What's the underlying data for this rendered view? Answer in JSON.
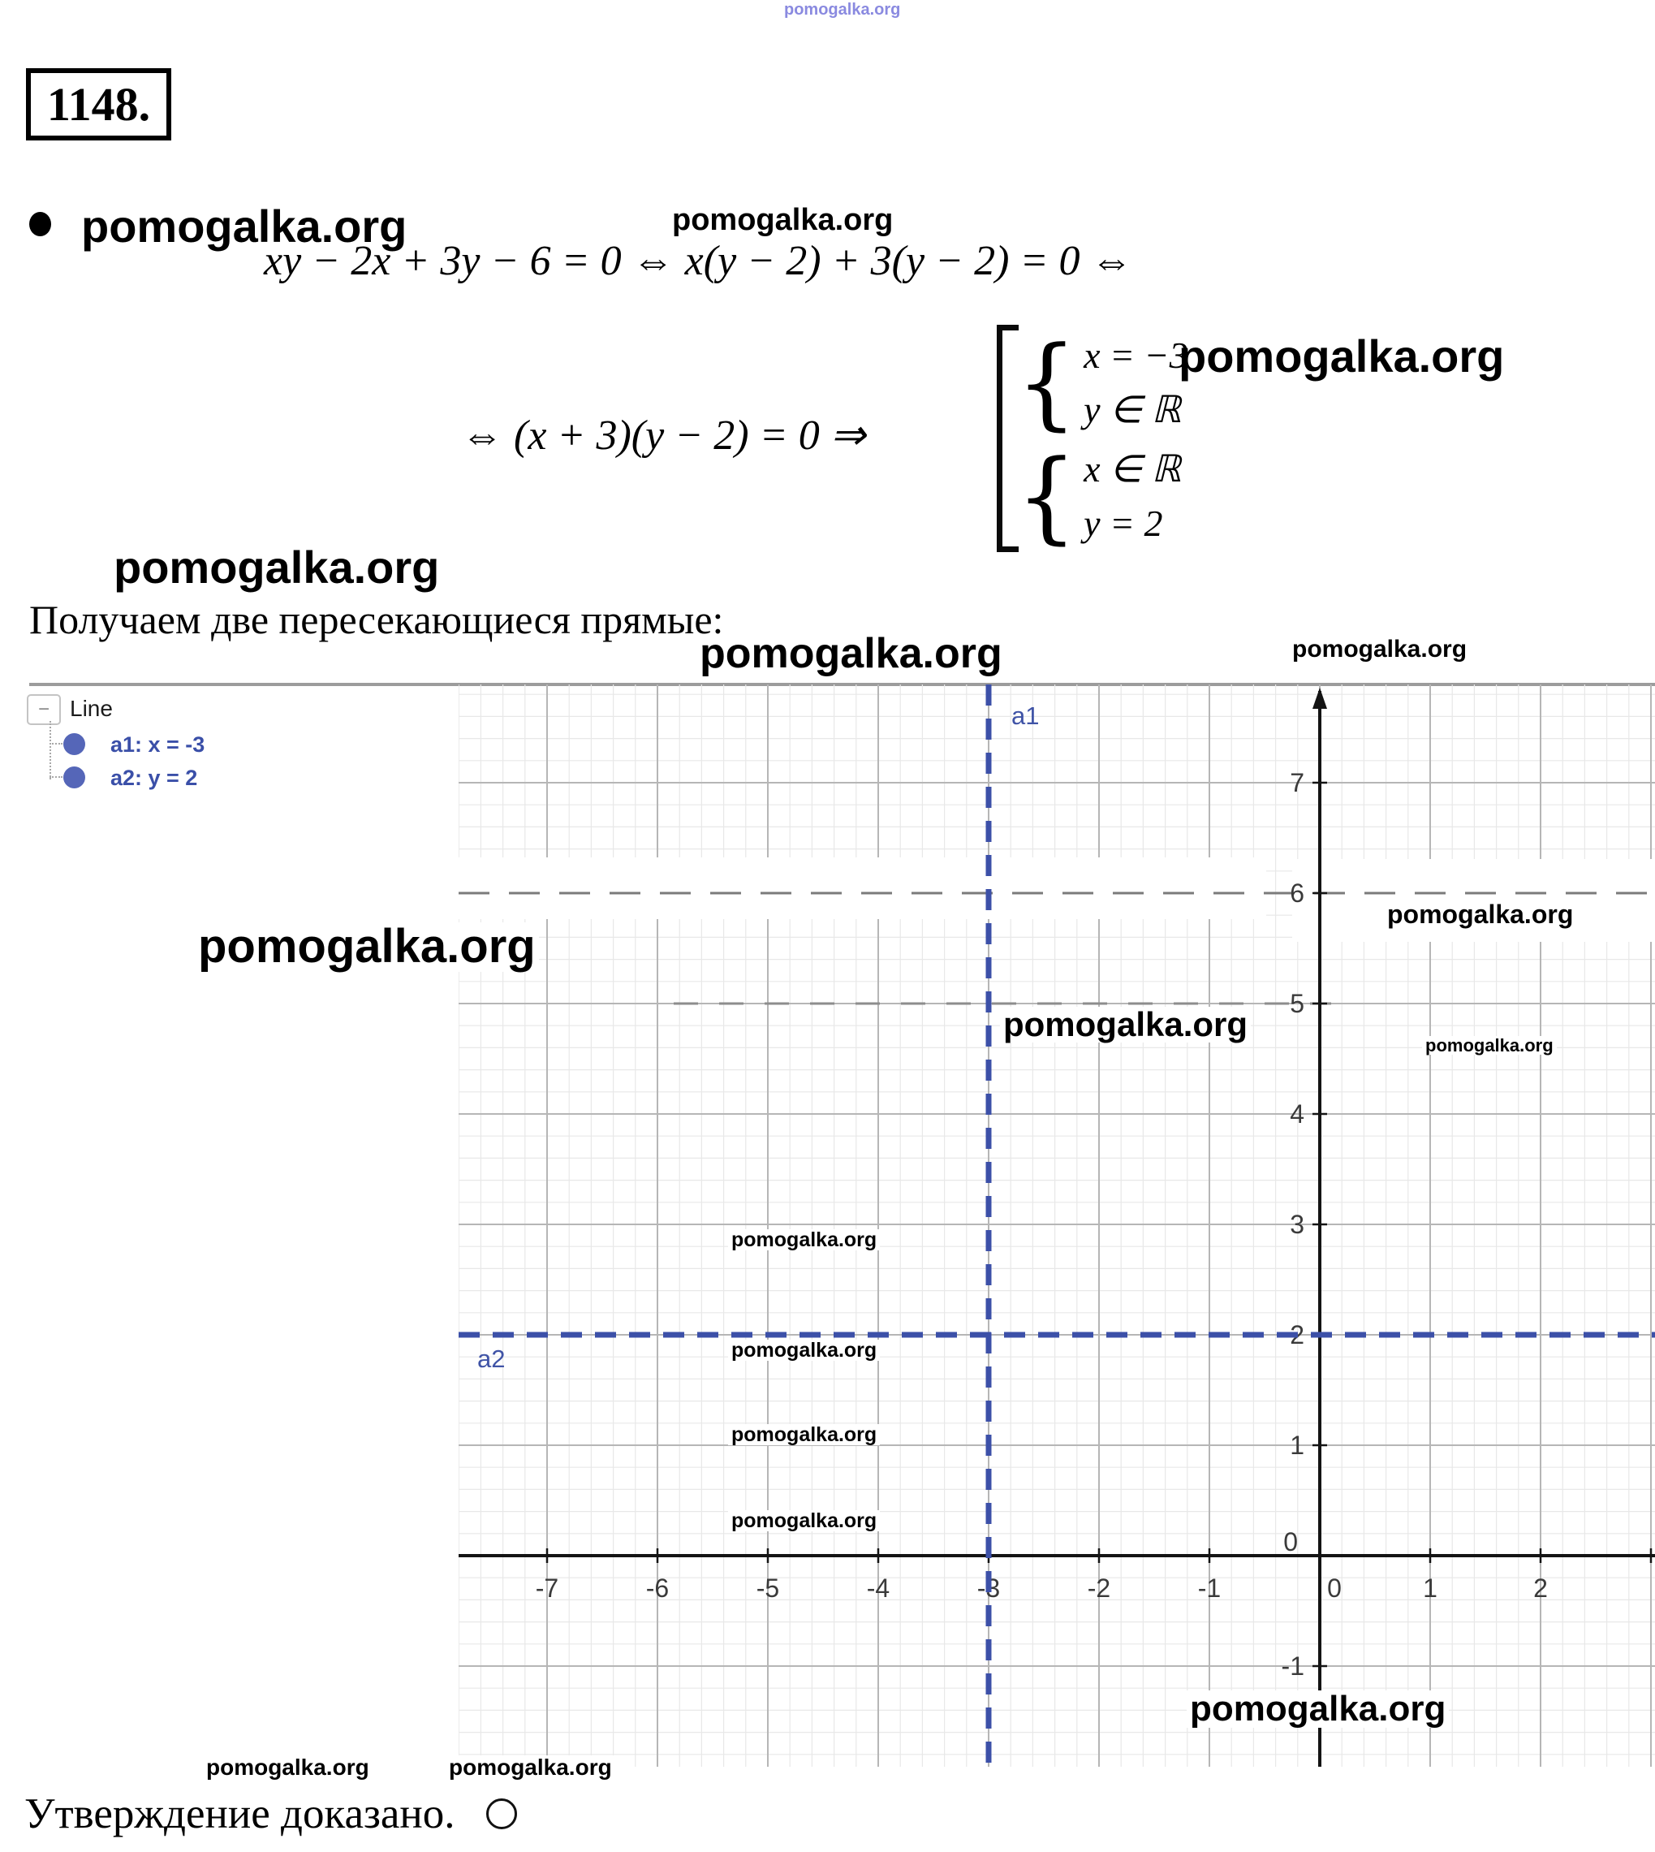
{
  "watermark_text": "pomogalka.org",
  "problem_number": "1148.",
  "math": {
    "line1": "xy − 2x + 3y − 6 = 0  ⇔  x(y − 2) + 3(y − 2) = 0  ⇔",
    "line2": "⇔ (x + 3)(y − 2) = 0 ⇒",
    "case1_row1": "x = −3",
    "case1_row2": "y ∈ ℝ",
    "case2_row1": "x ∈ ℝ",
    "case2_row2": "y = 2"
  },
  "intro_text": "Получаем две пересекающиеся прямые:",
  "conclusion_text": "Утверждение доказано.",
  "legend": {
    "title": "Line",
    "collapse": "−",
    "items": [
      {
        "label": "a1: x = -3"
      },
      {
        "label": "a2: y = 2"
      }
    ]
  },
  "graph_labels": {
    "a1": "a1",
    "a2": "a2"
  },
  "chart_data": {
    "type": "line",
    "title": "",
    "xlabel": "",
    "ylabel": "",
    "lines": [
      {
        "name": "a1",
        "equation": "x = -3",
        "orientation": "vertical",
        "value": -3,
        "style": "dashed"
      },
      {
        "name": "a2",
        "equation": "y = 2",
        "orientation": "horizontal",
        "value": 2,
        "style": "dashed"
      }
    ],
    "x_ticks": [
      -7,
      -6,
      -5,
      -4,
      -3,
      -2,
      -1,
      0,
      1,
      2
    ],
    "y_ticks": [
      7,
      6,
      5,
      4,
      3,
      2,
      1,
      0,
      -1
    ],
    "x_range": [
      -7.8,
      3.0
    ],
    "y_range": [
      -1.9,
      7.9
    ],
    "grid": "major+minor",
    "minor_per_unit": 5,
    "legend_position": "top-left-outside",
    "colors": {
      "line": "#3c50a8",
      "major_grid": "#b6b6b6",
      "minor_grid": "#e8e8e8",
      "axis": "#141414",
      "tick_label": "#3a3a3a",
      "label_blue": "#3f53a6",
      "sketch_line": "#7b7b7b"
    }
  }
}
